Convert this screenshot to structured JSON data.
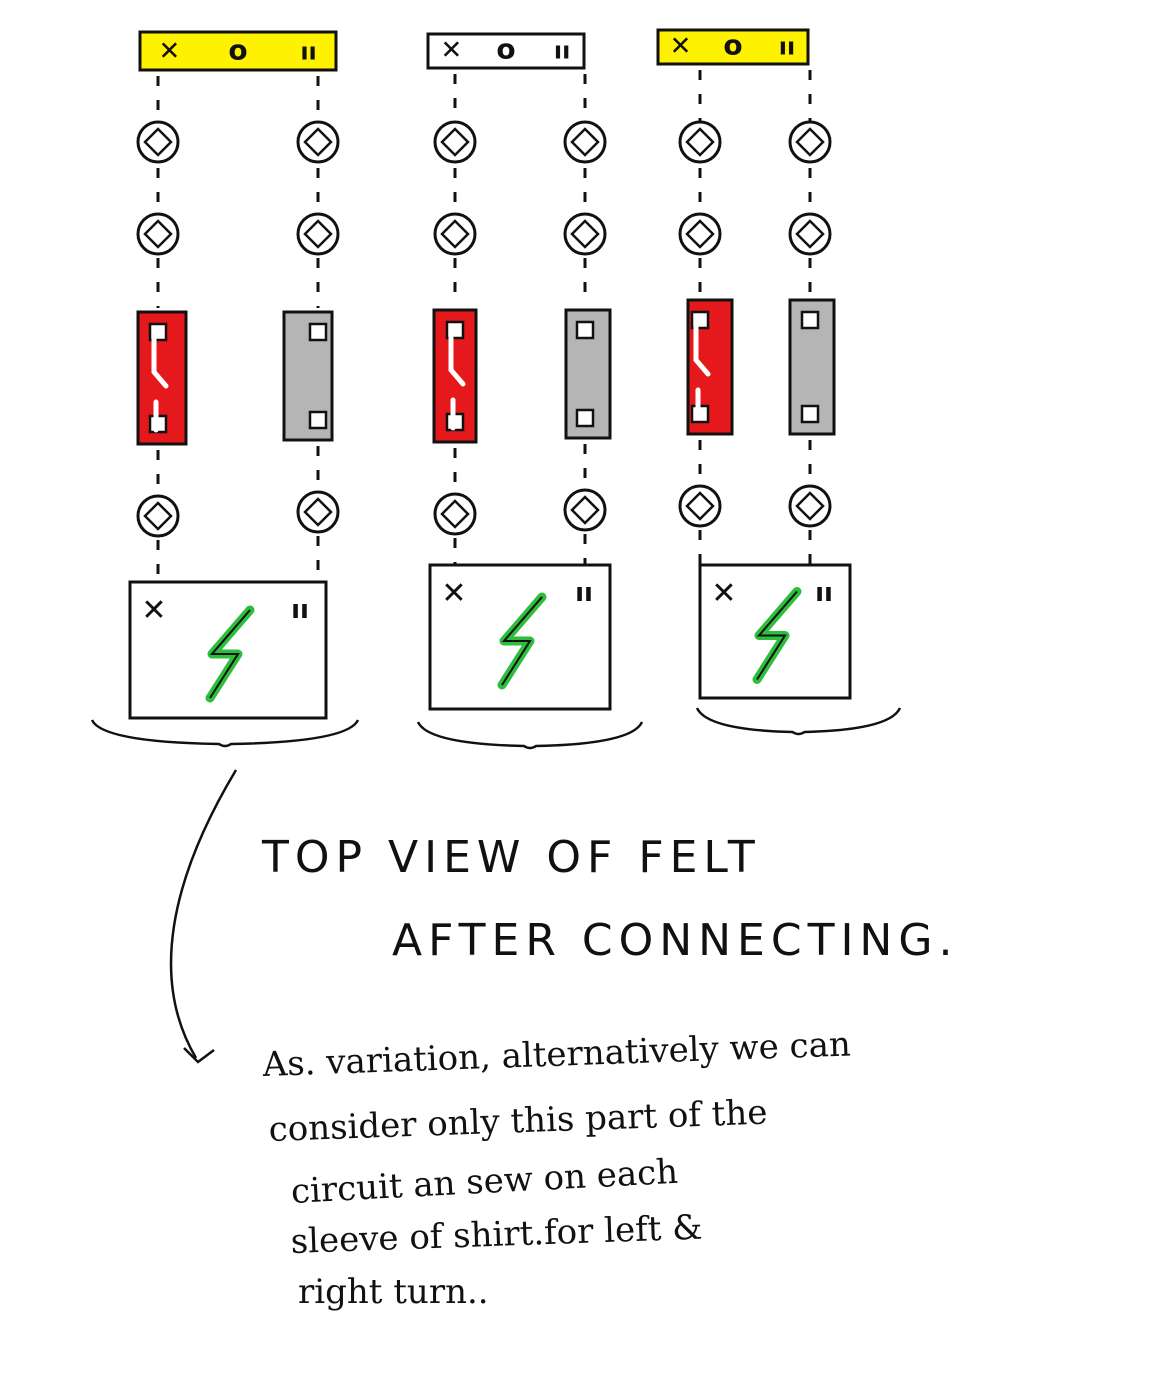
{
  "diagram": {
    "connector_glyphs": [
      "✕",
      "o",
      "ıı"
    ],
    "module_glyphs": [
      "✕",
      "ıı"
    ],
    "colors": {
      "connector": "#FFF200",
      "red_switch": "#E5191C",
      "grey_switch": "#B5B5B5",
      "bolt": "#2DBE3C",
      "ink": "#111111"
    },
    "columns": 3
  },
  "title": {
    "line1": "TOP VIEW OF FELT",
    "line2": "AFTER CONNECTING."
  },
  "note": {
    "lines": [
      "As. variation, alternatively we can",
      "consider only this part of the",
      "circuit an sew on each",
      "sleeve of shirt.for left &",
      "right turn.."
    ]
  }
}
